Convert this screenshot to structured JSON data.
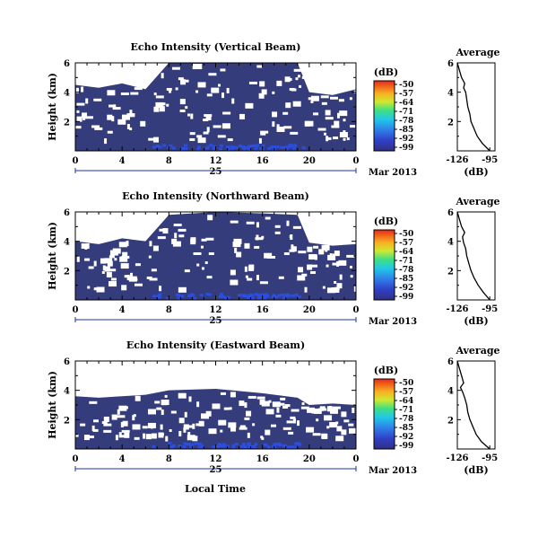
{
  "figure": {
    "xlabel": "Local Time",
    "date_label": "Mar 2013",
    "date_day": "25",
    "avg_title": "Average",
    "avg_xlabel": "(dB)",
    "colorbar_unit": "(dB)"
  },
  "chart_data": [
    {
      "type": "heatmap",
      "title": "Echo Intensity (Vertical Beam)",
      "xlabel": "Local Time",
      "ylabel": "Height (km)",
      "x_ticks": [
        "0",
        "4",
        "8",
        "12",
        "16",
        "20",
        "0"
      ],
      "xlim": [
        0,
        24
      ],
      "y_ticks": [
        "2",
        "4",
        "6"
      ],
      "ylim": [
        0,
        6
      ],
      "colorbar": {
        "label": "(dB)",
        "ticks": [
          "-50",
          "-57",
          "-64",
          "-71",
          "-78",
          "-85",
          "-92",
          "-99"
        ],
        "range": [
          -99,
          -50
        ]
      },
      "date": "25 Mar 2013",
      "cloud_top_profile": [
        {
          "t": 0,
          "top": 4.5
        },
        {
          "t": 2,
          "top": 4.3
        },
        {
          "t": 4,
          "top": 4.6
        },
        {
          "t": 6,
          "top": 4.2
        },
        {
          "t": 8,
          "top": 6.0
        },
        {
          "t": 12,
          "top": 6.0
        },
        {
          "t": 16,
          "top": 6.0
        },
        {
          "t": 19,
          "top": 6.0
        },
        {
          "t": 20,
          "top": 4.0
        },
        {
          "t": 22,
          "top": 3.8
        },
        {
          "t": 24,
          "top": 4.2
        }
      ],
      "colors": {
        "background": "#343c7c",
        "strong_echo": "#2a4ee0",
        "gap": "#ffffff"
      }
    },
    {
      "type": "heatmap",
      "title": "Echo Intensity (Northward Beam)",
      "xlabel": "Local Time",
      "ylabel": "Height (km)",
      "x_ticks": [
        "0",
        "4",
        "8",
        "12",
        "16",
        "20",
        "0"
      ],
      "xlim": [
        0,
        24
      ],
      "y_ticks": [
        "2",
        "4",
        "6"
      ],
      "ylim": [
        0,
        6
      ],
      "colorbar": {
        "label": "(dB)",
        "ticks": [
          "-50",
          "-57",
          "-64",
          "-71",
          "-78",
          "-85",
          "-92",
          "-99"
        ],
        "range": [
          -99,
          -50
        ]
      },
      "date": "25 Mar 2013",
      "cloud_top_profile": [
        {
          "t": 0,
          "top": 4.0
        },
        {
          "t": 2,
          "top": 3.8
        },
        {
          "t": 4,
          "top": 4.2
        },
        {
          "t": 6,
          "top": 4.0
        },
        {
          "t": 8,
          "top": 5.8
        },
        {
          "t": 12,
          "top": 6.0
        },
        {
          "t": 16,
          "top": 5.9
        },
        {
          "t": 19,
          "top": 5.8
        },
        {
          "t": 20,
          "top": 3.9
        },
        {
          "t": 22,
          "top": 3.7
        },
        {
          "t": 24,
          "top": 3.8
        }
      ],
      "colors": {
        "background": "#343c7c",
        "strong_echo": "#2a4ee0",
        "gap": "#ffffff"
      }
    },
    {
      "type": "heatmap",
      "title": "Echo Intensity (Eastward Beam)",
      "xlabel": "Local Time",
      "ylabel": "Height (km)",
      "x_ticks": [
        "0",
        "4",
        "8",
        "12",
        "16",
        "20",
        "0"
      ],
      "xlim": [
        0,
        24
      ],
      "y_ticks": [
        "2",
        "4",
        "6"
      ],
      "ylim": [
        0,
        6
      ],
      "colorbar": {
        "label": "(dB)",
        "ticks": [
          "-50",
          "-57",
          "-64",
          "-71",
          "-78",
          "-85",
          "-92",
          "-99"
        ],
        "range": [
          -99,
          -50
        ]
      },
      "date": "25 Mar 2013",
      "cloud_top_profile": [
        {
          "t": 0,
          "top": 3.6
        },
        {
          "t": 2,
          "top": 3.5
        },
        {
          "t": 4,
          "top": 3.6
        },
        {
          "t": 6,
          "top": 3.7
        },
        {
          "t": 8,
          "top": 4.0
        },
        {
          "t": 12,
          "top": 4.1
        },
        {
          "t": 16,
          "top": 3.8
        },
        {
          "t": 19,
          "top": 3.5
        },
        {
          "t": 20,
          "top": 3.0
        },
        {
          "t": 22,
          "top": 3.1
        },
        {
          "t": 24,
          "top": 3.0
        }
      ],
      "colors": {
        "background": "#343c7c",
        "strong_echo": "#2a4ee0",
        "gap": "#ffffff"
      }
    },
    {
      "type": "line",
      "title": "Average",
      "xlabel": "(dB)",
      "x_ticks": [
        "-126",
        "-95"
      ],
      "xlim": [
        -126,
        -90
      ],
      "y_ticks": [
        "2",
        "4",
        "6"
      ],
      "ylim": [
        0,
        6
      ],
      "series": [
        {
          "points": [
            [
              -95,
              0
            ],
            [
              -102,
              0.5
            ],
            [
              -107,
              1.0
            ],
            [
              -110,
              1.5
            ],
            [
              -113,
              2.0
            ],
            [
              -114,
              2.5
            ],
            [
              -116,
              3.0
            ],
            [
              -117,
              3.5
            ],
            [
              -118,
              4.0
            ],
            [
              -120,
              4.3
            ],
            [
              -119,
              4.6
            ],
            [
              -122,
              5.0
            ],
            [
              -124,
              5.5
            ],
            [
              -126,
              6.0
            ]
          ]
        }
      ]
    },
    {
      "type": "line",
      "title": "Average",
      "xlabel": "(dB)",
      "x_ticks": [
        "-126",
        "-95"
      ],
      "xlim": [
        -126,
        -90
      ],
      "y_ticks": [
        "2",
        "4",
        "6"
      ],
      "ylim": [
        0,
        6
      ],
      "series": [
        {
          "points": [
            [
              -95,
              0
            ],
            [
              -101,
              0.5
            ],
            [
              -106,
              1.0
            ],
            [
              -110,
              1.5
            ],
            [
              -113,
              2.0
            ],
            [
              -115,
              2.5
            ],
            [
              -117,
              3.0
            ],
            [
              -118,
              3.5
            ],
            [
              -120,
              3.9
            ],
            [
              -121,
              4.3
            ],
            [
              -119,
              4.6
            ],
            [
              -122,
              5.0
            ],
            [
              -124,
              5.5
            ],
            [
              -126,
              6.0
            ]
          ]
        }
      ]
    },
    {
      "type": "line",
      "title": "Average",
      "xlabel": "(dB)",
      "x_ticks": [
        "-126",
        "-95"
      ],
      "xlim": [
        -126,
        -90
      ],
      "y_ticks": [
        "2",
        "4",
        "6"
      ],
      "ylim": [
        0,
        6
      ],
      "series": [
        {
          "points": [
            [
              -95,
              0
            ],
            [
              -103,
              0.5
            ],
            [
              -108,
              1.0
            ],
            [
              -111,
              1.5
            ],
            [
              -114,
              2.0
            ],
            [
              -116,
              2.5
            ],
            [
              -117,
              3.0
            ],
            [
              -119,
              3.5
            ],
            [
              -121,
              3.9
            ],
            [
              -123,
              4.2
            ],
            [
              -120,
              4.5
            ],
            [
              -122,
              5.0
            ],
            [
              -124,
              5.5
            ],
            [
              -126,
              6.0
            ]
          ]
        }
      ]
    }
  ]
}
